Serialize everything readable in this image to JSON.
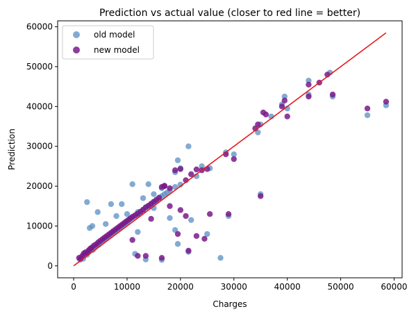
{
  "chart_data": {
    "type": "scatter",
    "title": "Prediction vs actual value (closer to red line = better)",
    "xlabel": "Charges",
    "ylabel": "Prediction",
    "xlim": [
      -3000,
      61500
    ],
    "ylim": [
      -3000,
      61500
    ],
    "xticks": [
      "0",
      "10000",
      "20000",
      "30000",
      "40000",
      "50000",
      "60000"
    ],
    "yticks": [
      "0",
      "10000",
      "20000",
      "30000",
      "40000",
      "50000",
      "60000"
    ],
    "grid": false,
    "legend_position": "top-left",
    "reference_line": {
      "color": "#e41a1c",
      "x": [
        0,
        58500
      ],
      "y": [
        0,
        58500
      ]
    },
    "series": [
      {
        "name": "old model",
        "color": "#5a8fc3",
        "points": [
          [
            1200,
            1500
          ],
          [
            1500,
            2200
          ],
          [
            1800,
            1800
          ],
          [
            2000,
            2600
          ],
          [
            2200,
            3000
          ],
          [
            2500,
            2800
          ],
          [
            2800,
            3500
          ],
          [
            3000,
            3800
          ],
          [
            3300,
            4200
          ],
          [
            3600,
            4000
          ],
          [
            4000,
            4600
          ],
          [
            4300,
            5000
          ],
          [
            4700,
            5300
          ],
          [
            5000,
            5800
          ],
          [
            5400,
            6200
          ],
          [
            5800,
            6600
          ],
          [
            6200,
            7000
          ],
          [
            6600,
            7400
          ],
          [
            7000,
            7800
          ],
          [
            7400,
            8300
          ],
          [
            7800,
            8700
          ],
          [
            8200,
            9100
          ],
          [
            8600,
            9500
          ],
          [
            9000,
            9900
          ],
          [
            9400,
            10300
          ],
          [
            9800,
            10800
          ],
          [
            10200,
            11200
          ],
          [
            10600,
            11700
          ],
          [
            11000,
            12100
          ],
          [
            11500,
            12500
          ],
          [
            12000,
            13000
          ],
          [
            12500,
            13500
          ],
          [
            13000,
            14000
          ],
          [
            13500,
            14600
          ],
          [
            14000,
            15000
          ],
          [
            14500,
            15500
          ],
          [
            15000,
            16000
          ],
          [
            15500,
            16400
          ],
          [
            16000,
            17000
          ],
          [
            16500,
            17500
          ],
          [
            17000,
            18000
          ],
          [
            17500,
            18400
          ],
          [
            18000,
            19000
          ],
          [
            19000,
            19800
          ],
          [
            20000,
            20400
          ],
          [
            2500,
            16000
          ],
          [
            3500,
            10000
          ],
          [
            3000,
            9500
          ],
          [
            4500,
            13500
          ],
          [
            6000,
            10500
          ],
          [
            7000,
            15500
          ],
          [
            8000,
            12500
          ],
          [
            9000,
            15500
          ],
          [
            10000,
            13000
          ],
          [
            11000,
            20500
          ],
          [
            12000,
            13500
          ],
          [
            13000,
            17000
          ],
          [
            14000,
            20500
          ],
          [
            15000,
            18000
          ],
          [
            16500,
            19500
          ],
          [
            19000,
            23500
          ],
          [
            19500,
            26500
          ],
          [
            20000,
            24500
          ],
          [
            21500,
            30000
          ],
          [
            23000,
            22500
          ],
          [
            24000,
            25000
          ],
          [
            25500,
            24500
          ],
          [
            28500,
            28500
          ],
          [
            30000,
            28000
          ],
          [
            34500,
            33500
          ],
          [
            35000,
            35500
          ],
          [
            37000,
            37500
          ],
          [
            39500,
            42500
          ],
          [
            40000,
            39500
          ],
          [
            39000,
            40500
          ],
          [
            44000,
            46500
          ],
          [
            44000,
            43000
          ],
          [
            48000,
            48500
          ],
          [
            48500,
            42500
          ],
          [
            55000,
            37800
          ],
          [
            58500,
            40300
          ],
          [
            35000,
            18000
          ],
          [
            19000,
            9000
          ],
          [
            19500,
            5500
          ],
          [
            21500,
            3500
          ],
          [
            25000,
            8000
          ],
          [
            27500,
            2000
          ],
          [
            29000,
            12500
          ],
          [
            11500,
            3000
          ],
          [
            13500,
            1600
          ],
          [
            16500,
            1500
          ],
          [
            12000,
            8500
          ],
          [
            15000,
            14500
          ],
          [
            18000,
            12000
          ],
          [
            22000,
            11500
          ]
        ]
      },
      {
        "name": "new model",
        "color": "#7a1a8a",
        "points": [
          [
            1000,
            2000
          ],
          [
            1300,
            1800
          ],
          [
            1600,
            2500
          ],
          [
            1900,
            3100
          ],
          [
            2200,
            3400
          ],
          [
            2500,
            3200
          ],
          [
            2800,
            3900
          ],
          [
            3100,
            4300
          ],
          [
            3400,
            4600
          ],
          [
            3800,
            5100
          ],
          [
            4200,
            5400
          ],
          [
            4600,
            5900
          ],
          [
            5000,
            6300
          ],
          [
            5400,
            6700
          ],
          [
            5800,
            7100
          ],
          [
            6200,
            7500
          ],
          [
            6600,
            7900
          ],
          [
            7000,
            8300
          ],
          [
            7400,
            8700
          ],
          [
            7800,
            9100
          ],
          [
            8200,
            9500
          ],
          [
            8600,
            9900
          ],
          [
            9000,
            10300
          ],
          [
            9400,
            10700
          ],
          [
            9800,
            11100
          ],
          [
            10200,
            11500
          ],
          [
            10600,
            11900
          ],
          [
            11000,
            12300
          ],
          [
            11500,
            12700
          ],
          [
            12000,
            13100
          ],
          [
            12500,
            13600
          ],
          [
            13000,
            14100
          ],
          [
            13500,
            14700
          ],
          [
            14000,
            15100
          ],
          [
            14500,
            15600
          ],
          [
            15000,
            16100
          ],
          [
            15500,
            16600
          ],
          [
            16000,
            17100
          ],
          [
            16500,
            19800
          ],
          [
            17000,
            20100
          ],
          [
            18000,
            19500
          ],
          [
            19000,
            24000
          ],
          [
            20000,
            24300
          ],
          [
            21000,
            21500
          ],
          [
            22000,
            23000
          ],
          [
            23000,
            24200
          ],
          [
            24000,
            24000
          ],
          [
            25000,
            24300
          ],
          [
            28500,
            28000
          ],
          [
            30000,
            26800
          ],
          [
            34000,
            34500
          ],
          [
            34500,
            35500
          ],
          [
            35500,
            38500
          ],
          [
            36000,
            38000
          ],
          [
            39000,
            40000
          ],
          [
            39500,
            41500
          ],
          [
            40000,
            37500
          ],
          [
            44000,
            45500
          ],
          [
            44000,
            42500
          ],
          [
            46000,
            46000
          ],
          [
            47500,
            48000
          ],
          [
            48500,
            43000
          ],
          [
            55000,
            39500
          ],
          [
            58500,
            41200
          ],
          [
            35000,
            17500
          ],
          [
            19500,
            8000
          ],
          [
            20000,
            14000
          ],
          [
            21500,
            3800
          ],
          [
            21000,
            12500
          ],
          [
            23000,
            7500
          ],
          [
            24500,
            6800
          ],
          [
            25500,
            13000
          ],
          [
            29000,
            13000
          ],
          [
            11000,
            6500
          ],
          [
            13500,
            2500
          ],
          [
            16500,
            2000
          ],
          [
            12000,
            2500
          ],
          [
            17000,
            20000
          ],
          [
            18000,
            15000
          ],
          [
            14500,
            11800
          ]
        ]
      }
    ]
  }
}
